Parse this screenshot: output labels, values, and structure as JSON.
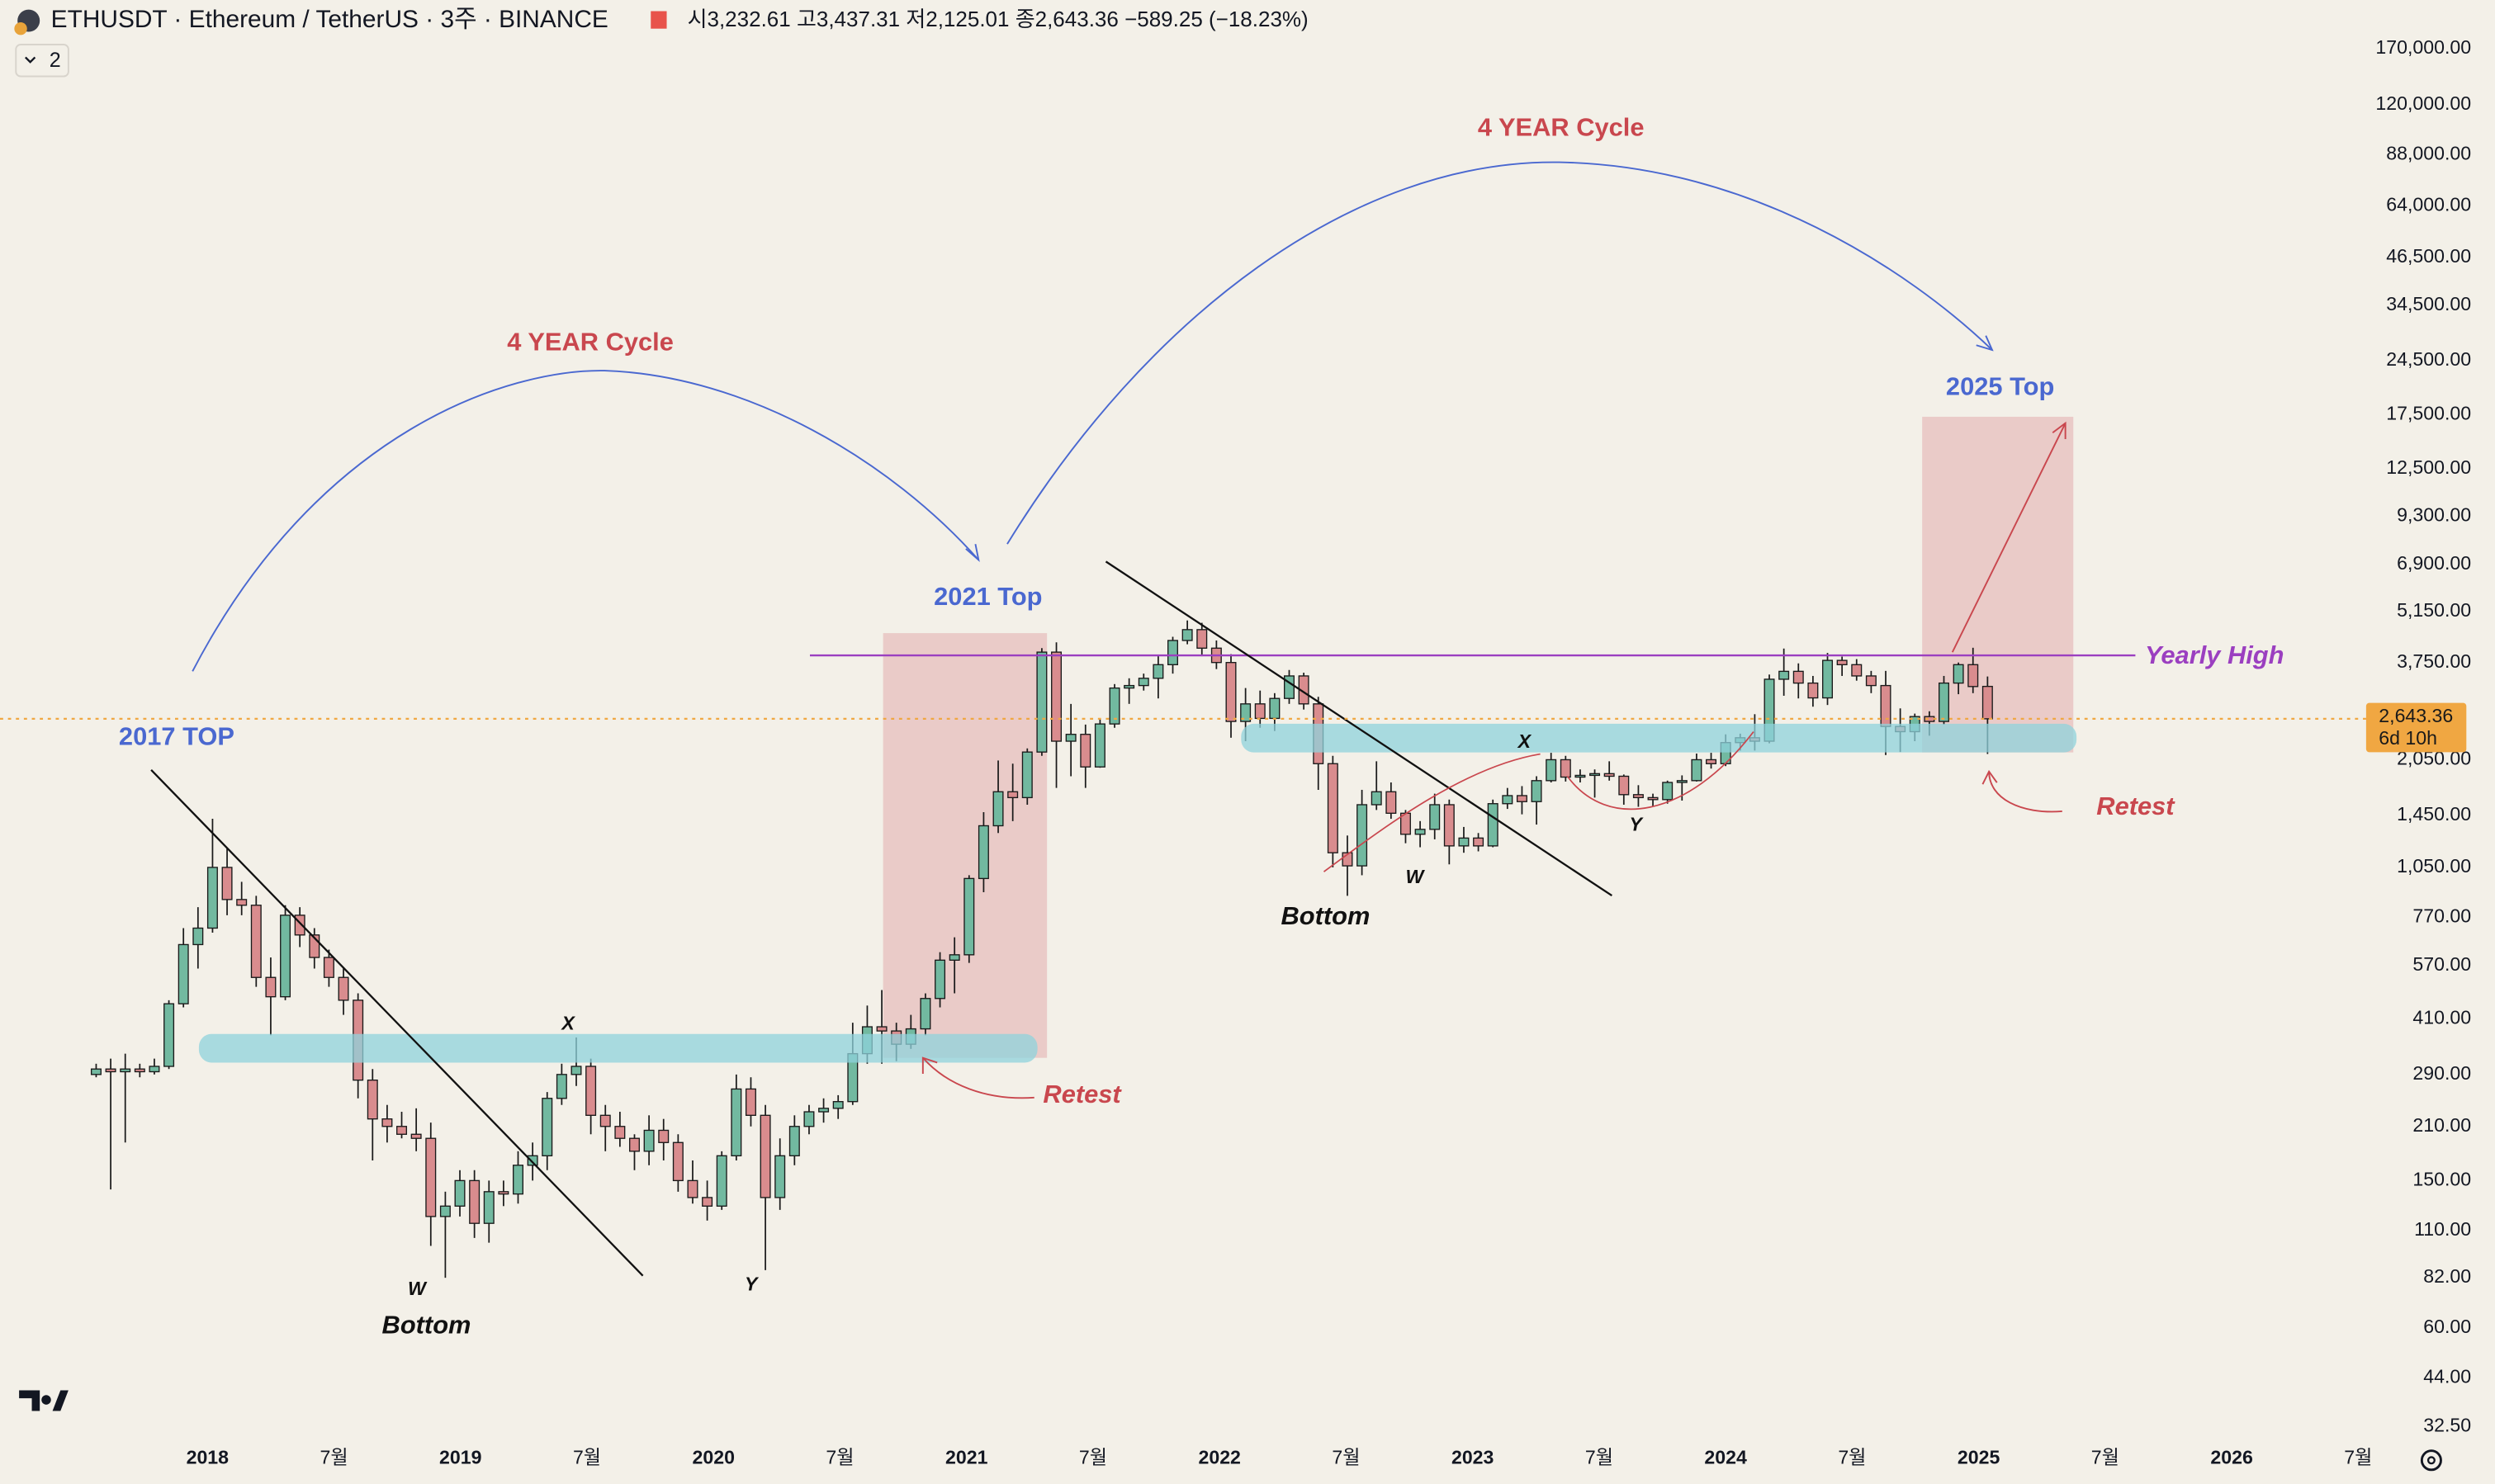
{
  "chart_data": {
    "type": "candlestick",
    "header": {
      "symbol": "ETHUSDT · Ethereum / TetherUS · 3주 · BINANCE",
      "ohlc": [
        {
          "label": "시",
          "value": "3,232.61"
        },
        {
          "label": "고",
          "value": "3,437.31"
        },
        {
          "label": "저",
          "value": "2,125.01"
        },
        {
          "label": "종",
          "value": "2,643.36"
        }
      ],
      "change": "−589.25 (−18.23%)",
      "indicators": "2"
    },
    "last_price_label": "2,643.36",
    "countdown": "6d 10h",
    "annotations": [
      "4 YEAR Cycle",
      "4 YEAR Cycle",
      "2017 TOP",
      "2021 Top",
      "2025 Top",
      "Yearly High",
      "Bottom",
      "Bottom",
      "Retest",
      "Retest",
      "W",
      "X",
      "Y",
      "W",
      "X",
      "Y"
    ],
    "up_color": "#72b9a0",
    "down_color": "#d98c8e",
    "log_scale": true,
    "grid": false,
    "xlim": [
      2017.18,
      2026.55
    ],
    "ylim": [
      30,
      230000
    ],
    "xticks": [
      {
        "value": 2018,
        "label": "2018"
      },
      {
        "value": 2018.5,
        "label": "7월"
      },
      {
        "value": 2019,
        "label": "2019"
      },
      {
        "value": 2019.5,
        "label": "7월"
      },
      {
        "value": 2020,
        "label": "2020"
      },
      {
        "value": 2020.5,
        "label": "7월"
      },
      {
        "value": 2021,
        "label": "2021"
      },
      {
        "value": 2021.5,
        "label": "7월"
      },
      {
        "value": 2022,
        "label": "2022"
      },
      {
        "value": 2022.5,
        "label": "7월"
      },
      {
        "value": 2023,
        "label": "2023"
      },
      {
        "value": 2023.5,
        "label": "7월"
      },
      {
        "value": 2024,
        "label": "2024"
      },
      {
        "value": 2024.5,
        "label": "7월"
      },
      {
        "value": 2025,
        "label": "2025"
      },
      {
        "value": 2025.5,
        "label": "7월"
      },
      {
        "value": 2026,
        "label": "2026"
      },
      {
        "value": 2026.5,
        "label": "7월"
      }
    ],
    "yticks": [
      {
        "value": 170000,
        "label": "170,000.00"
      },
      {
        "value": 120000,
        "label": "120,000.00"
      },
      {
        "value": 88000,
        "label": "88,000.00"
      },
      {
        "value": 64000,
        "label": "64,000.00"
      },
      {
        "value": 46500,
        "label": "46,500.00"
      },
      {
        "value": 34500,
        "label": "34,500.00"
      },
      {
        "value": 24500,
        "label": "24,500.00"
      },
      {
        "value": 17500,
        "label": "17,500.00"
      },
      {
        "value": 12500,
        "label": "12,500.00"
      },
      {
        "value": 9300,
        "label": "9,300.00"
      },
      {
        "value": 6900,
        "label": "6,900.00"
      },
      {
        "value": 5150,
        "label": "5,150.00"
      },
      {
        "value": 3750,
        "label": "3,750.00"
      },
      {
        "value": 2050,
        "label": "2,050.00"
      },
      {
        "value": 1450,
        "label": "1,450.00"
      },
      {
        "value": 1050,
        "label": "1,050.00"
      },
      {
        "value": 770,
        "label": "770.00"
      },
      {
        "value": 570,
        "label": "570.00"
      },
      {
        "value": 410,
        "label": "410.00"
      },
      {
        "value": 290,
        "label": "290.00"
      },
      {
        "value": 210,
        "label": "210.00"
      },
      {
        "value": 150,
        "label": "150.00"
      },
      {
        "value": 110,
        "label": "110.00"
      },
      {
        "value": 82,
        "label": "82.00"
      },
      {
        "value": 60,
        "label": "60.00"
      },
      {
        "value": 44,
        "label": "44.00"
      },
      {
        "value": 32.5,
        "label": "32.50"
      }
    ],
    "x": [
      2017.56,
      2017.6175,
      2017.675,
      2017.7325,
      2017.79,
      2017.8475,
      2017.905,
      2017.9625,
      2018.02,
      2018.0775,
      2018.135,
      2018.1925,
      2018.25,
      2018.3075,
      2018.365,
      2018.4225,
      2018.48,
      2018.5375,
      2018.595,
      2018.6525,
      2018.71,
      2018.7675,
      2018.825,
      2018.8825,
      2018.94,
      2018.9975,
      2019.055,
      2019.1125,
      2019.17,
      2019.2275,
      2019.285,
      2019.3425,
      2019.4,
      2019.4575,
      2019.515,
      2019.5725,
      2019.63,
      2019.6875,
      2019.745,
      2019.8025,
      2019.86,
      2019.9175,
      2019.975,
      2020.0325,
      2020.09,
      2020.1475,
      2020.205,
      2020.2625,
      2020.32,
      2020.3775,
      2020.435,
      2020.4925,
      2020.55,
      2020.6075,
      2020.665,
      2020.7225,
      2020.78,
      2020.8375,
      2020.895,
      2020.9525,
      2021.01,
      2021.0675,
      2021.125,
      2021.1825,
      2021.24,
      2021.2975,
      2021.355,
      2021.4125,
      2021.47,
      2021.5275,
      2021.585,
      2021.6425,
      2021.7,
      2021.7575,
      2021.815,
      2021.8725,
      2021.93,
      2021.9875,
      2022.045,
      2022.1025,
      2022.16,
      2022.2175,
      2022.275,
      2022.3325,
      2022.39,
      2022.4475,
      2022.505,
      2022.5625,
      2022.62,
      2022.6775,
      2022.735,
      2022.7925,
      2022.85,
      2022.9075,
      2022.965,
      2023.0225,
      2023.08,
      2023.1375,
      2023.195,
      2023.2525,
      2023.31,
      2023.3675,
      2023.425,
      2023.4825,
      2023.54,
      2023.5975,
      2023.655,
      2023.7125,
      2023.77,
      2023.8275,
      2023.885,
      2023.9425,
      2024.0,
      2024.0575,
      2024.115,
      2024.1725,
      2024.23,
      2024.2875,
      2024.345,
      2024.4025,
      2024.46,
      2024.5175,
      2024.575,
      2024.6325,
      2024.69,
      2024.7475,
      2024.805,
      2024.8625,
      2024.92,
      2024.9775,
      2025.035
    ],
    "ohlc": [
      [
        290,
        310,
        285,
        300
      ],
      [
        300,
        320,
        142,
        295
      ],
      [
        295,
        330,
        190,
        300
      ],
      [
        300,
        310,
        285,
        295
      ],
      [
        295,
        320,
        290,
        305
      ],
      [
        305,
        460,
        300,
        450
      ],
      [
        450,
        720,
        440,
        650
      ],
      [
        650,
        820,
        560,
        720
      ],
      [
        720,
        1420,
        700,
        1050
      ],
      [
        1050,
        1180,
        780,
        860
      ],
      [
        860,
        960,
        780,
        830
      ],
      [
        830,
        880,
        500,
        530
      ],
      [
        530,
        600,
        370,
        470
      ],
      [
        470,
        830,
        460,
        780
      ],
      [
        780,
        820,
        640,
        690
      ],
      [
        690,
        720,
        560,
        600
      ],
      [
        600,
        630,
        500,
        530
      ],
      [
        530,
        560,
        420,
        460
      ],
      [
        460,
        480,
        250,
        280
      ],
      [
        280,
        300,
        170,
        220
      ],
      [
        220,
        240,
        190,
        210
      ],
      [
        210,
        230,
        195,
        200
      ],
      [
        200,
        235,
        180,
        195
      ],
      [
        195,
        215,
        100,
        120
      ],
      [
        120,
        140,
        82,
        128
      ],
      [
        128,
        160,
        120,
        150
      ],
      [
        150,
        160,
        105,
        115
      ],
      [
        115,
        150,
        102,
        140
      ],
      [
        140,
        150,
        128,
        138
      ],
      [
        138,
        180,
        130,
        165
      ],
      [
        165,
        190,
        150,
        175
      ],
      [
        175,
        260,
        160,
        250
      ],
      [
        250,
        310,
        240,
        290
      ],
      [
        290,
        365,
        270,
        305
      ],
      [
        305,
        320,
        200,
        225
      ],
      [
        225,
        240,
        180,
        210
      ],
      [
        210,
        230,
        185,
        195
      ],
      [
        195,
        200,
        160,
        180
      ],
      [
        180,
        225,
        165,
        205
      ],
      [
        205,
        220,
        170,
        190
      ],
      [
        190,
        200,
        140,
        150
      ],
      [
        150,
        170,
        130,
        135
      ],
      [
        135,
        150,
        117,
        128
      ],
      [
        128,
        180,
        125,
        175
      ],
      [
        175,
        290,
        170,
        265
      ],
      [
        265,
        285,
        210,
        225
      ],
      [
        225,
        240,
        86,
        135
      ],
      [
        135,
        195,
        125,
        175
      ],
      [
        175,
        225,
        165,
        210
      ],
      [
        210,
        240,
        200,
        230
      ],
      [
        230,
        250,
        215,
        235
      ],
      [
        235,
        255,
        220,
        245
      ],
      [
        245,
        400,
        240,
        330
      ],
      [
        330,
        445,
        310,
        390
      ],
      [
        390,
        490,
        310,
        380
      ],
      [
        380,
        400,
        315,
        350
      ],
      [
        350,
        420,
        340,
        385
      ],
      [
        385,
        480,
        370,
        465
      ],
      [
        465,
        620,
        440,
        590
      ],
      [
        590,
        680,
        480,
        610
      ],
      [
        610,
        1000,
        580,
        980
      ],
      [
        980,
        1480,
        900,
        1360
      ],
      [
        1360,
        2040,
        1300,
        1680
      ],
      [
        1680,
        2000,
        1400,
        1620
      ],
      [
        1620,
        2200,
        1550,
        2150
      ],
      [
        2150,
        4100,
        2100,
        4000
      ],
      [
        4000,
        4250,
        1720,
        2300
      ],
      [
        2300,
        2900,
        1850,
        2400
      ],
      [
        2400,
        2550,
        1720,
        1960
      ],
      [
        1960,
        2650,
        1950,
        2560
      ],
      [
        2560,
        3280,
        2500,
        3200
      ],
      [
        3200,
        3400,
        2900,
        3250
      ],
      [
        3250,
        3500,
        3150,
        3400
      ],
      [
        3400,
        3900,
        3000,
        3700
      ],
      [
        3700,
        4400,
        3500,
        4300
      ],
      [
        4300,
        4870,
        4200,
        4600
      ],
      [
        4600,
        4800,
        3900,
        4100
      ],
      [
        4100,
        4300,
        3600,
        3750
      ],
      [
        3750,
        3950,
        2350,
        2600
      ],
      [
        2600,
        3200,
        2300,
        2900
      ],
      [
        2900,
        3150,
        2500,
        2650
      ],
      [
        2650,
        3100,
        2450,
        3000
      ],
      [
        3000,
        3580,
        2900,
        3450
      ],
      [
        3450,
        3520,
        2800,
        2900
      ],
      [
        2900,
        3030,
        1700,
        2000
      ],
      [
        2000,
        2100,
        1050,
        1150
      ],
      [
        1150,
        1280,
        880,
        1060
      ],
      [
        1060,
        1700,
        1000,
        1550
      ],
      [
        1550,
        2030,
        1500,
        1680
      ],
      [
        1680,
        1780,
        1420,
        1470
      ],
      [
        1470,
        1500,
        1220,
        1290
      ],
      [
        1290,
        1400,
        1190,
        1330
      ],
      [
        1330,
        1660,
        1250,
        1550
      ],
      [
        1550,
        1600,
        1070,
        1200
      ],
      [
        1200,
        1350,
        1150,
        1260
      ],
      [
        1260,
        1300,
        1160,
        1200
      ],
      [
        1200,
        1600,
        1190,
        1560
      ],
      [
        1560,
        1720,
        1510,
        1640
      ],
      [
        1640,
        1740,
        1460,
        1580
      ],
      [
        1580,
        1850,
        1370,
        1800
      ],
      [
        1800,
        2140,
        1780,
        2050
      ],
      [
        2050,
        2100,
        1790,
        1840
      ],
      [
        1840,
        1930,
        1780,
        1860
      ],
      [
        1860,
        1930,
        1620,
        1880
      ],
      [
        1880,
        2030,
        1800,
        1850
      ],
      [
        1850,
        1870,
        1550,
        1650
      ],
      [
        1650,
        1750,
        1530,
        1620
      ],
      [
        1620,
        1660,
        1530,
        1600
      ],
      [
        1600,
        1800,
        1560,
        1780
      ],
      [
        1780,
        1860,
        1590,
        1800
      ],
      [
        1800,
        2130,
        1790,
        2050
      ],
      [
        2050,
        2140,
        1940,
        2000
      ],
      [
        2000,
        2400,
        1970,
        2280
      ],
      [
        2280,
        2410,
        2170,
        2350
      ],
      [
        2350,
        2720,
        2170,
        2300
      ],
      [
        2300,
        3480,
        2270,
        3380
      ],
      [
        3380,
        4090,
        3050,
        3550
      ],
      [
        3550,
        3730,
        3000,
        3300
      ],
      [
        3300,
        3450,
        2850,
        3010
      ],
      [
        3010,
        3980,
        2880,
        3800
      ],
      [
        3800,
        3890,
        3450,
        3700
      ],
      [
        3700,
        3830,
        3350,
        3450
      ],
      [
        3450,
        3560,
        3100,
        3250
      ],
      [
        3250,
        3560,
        2110,
        2520
      ],
      [
        2520,
        2820,
        2150,
        2440
      ],
      [
        2440,
        2730,
        2300,
        2680
      ],
      [
        2680,
        2770,
        2380,
        2600
      ],
      [
        2600,
        3450,
        2550,
        3300
      ],
      [
        3300,
        3750,
        3080,
        3700
      ],
      [
        3700,
        4110,
        3100,
        3230
      ],
      [
        3232.61,
        3437.31,
        2125.01,
        2643.36
      ]
    ]
  }
}
